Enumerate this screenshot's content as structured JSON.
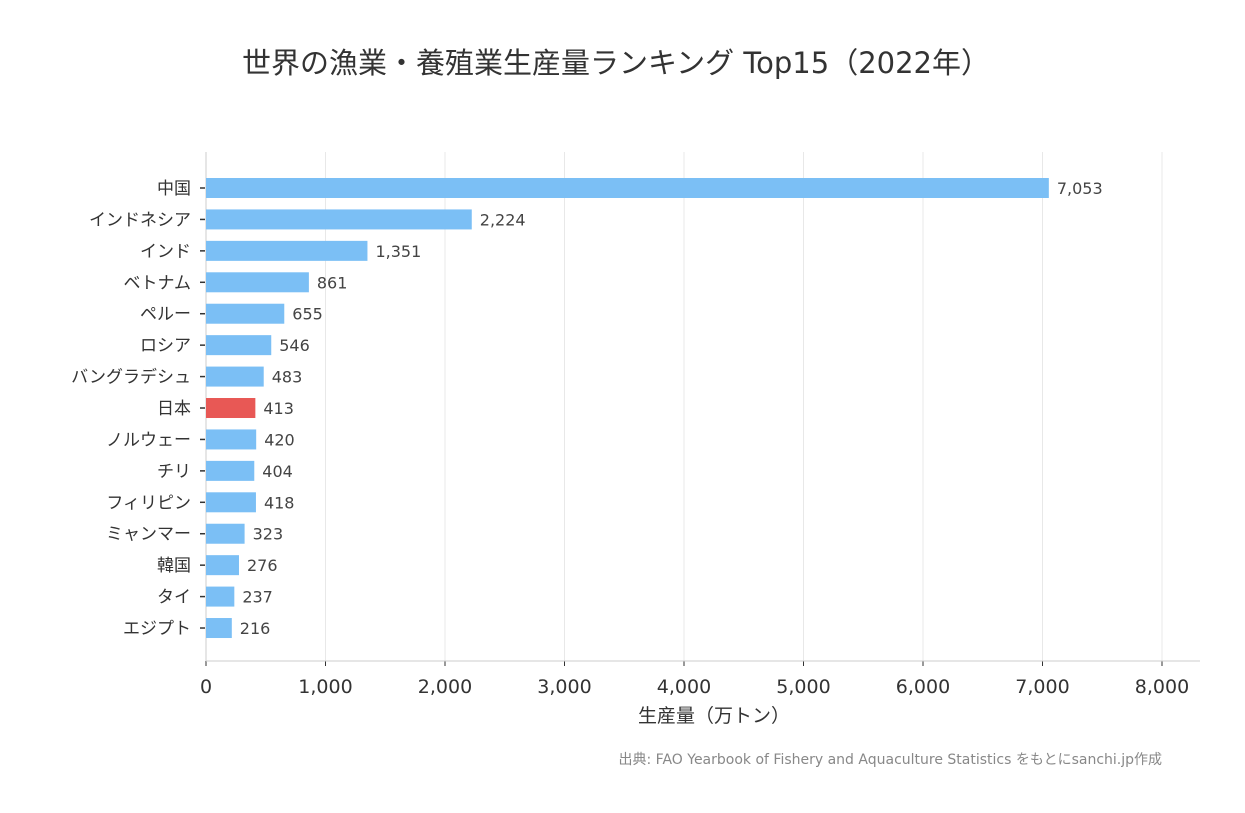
{
  "chart_data": {
    "type": "bar",
    "orientation": "horizontal",
    "title": "世界の漁業・養殖業生産量ランキング Top15（2022年）",
    "xlabel": "生産量（万トン）",
    "ylabel": "",
    "xlim": [
      0,
      8000
    ],
    "xticks": [
      "0",
      "1,000",
      "2,000",
      "3,000",
      "4,000",
      "5,000",
      "6,000",
      "7,000",
      "8,000"
    ],
    "grid": "vertical",
    "categories": [
      "中国",
      "インドネシア",
      "インド",
      "ベトナム",
      "ペルー",
      "ロシア",
      "バングラデシュ",
      "日本",
      "ノルウェー",
      "チリ",
      "フィリピン",
      "ミャンマー",
      "韓国",
      "タイ",
      "エジプト"
    ],
    "values": [
      7053,
      2224,
      1351,
      861,
      655,
      546,
      483,
      413,
      420,
      404,
      418,
      323,
      276,
      237,
      216
    ],
    "value_labels": [
      "7,053",
      "2,224",
      "1,351",
      "861",
      "655",
      "546",
      "483",
      "413",
      "420",
      "404",
      "418",
      "323",
      "276",
      "237",
      "216"
    ],
    "highlight": "日本",
    "colors": {
      "default": "#7bbff5",
      "highlight": "#e85855"
    },
    "source": "出典: FAO Yearbook of Fishery and Aquaculture Statistics をもとにsanchi.jp作成"
  }
}
